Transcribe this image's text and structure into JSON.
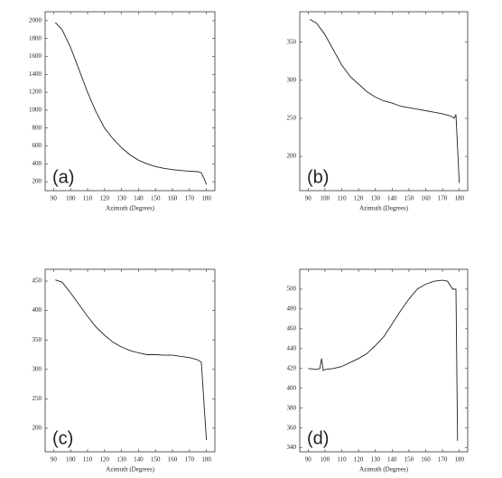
{
  "chart_data": [
    {
      "type": "line",
      "annotation": "(a)",
      "x_label": "Azimuth (Degrees)",
      "x": [
        91,
        95,
        100,
        105,
        110,
        115,
        120,
        125,
        130,
        135,
        140,
        145,
        150,
        155,
        160,
        165,
        170,
        175,
        177,
        179,
        180
      ],
      "series": [
        {
          "color": "#222222",
          "values": [
            1980,
            1900,
            1700,
            1450,
            1200,
            980,
            800,
            680,
            580,
            500,
            440,
            400,
            370,
            350,
            335,
            325,
            318,
            312,
            300,
            220,
            170
          ]
        }
      ],
      "xlim": [
        85,
        185
      ],
      "xticks": [
        90,
        100,
        110,
        120,
        130,
        140,
        150,
        160,
        170,
        180
      ],
      "ylim": [
        100,
        2100
      ],
      "yticks": [
        200,
        400,
        600,
        800,
        1000,
        1200,
        1400,
        1600,
        1800,
        2000
      ],
      "grid": false
    },
    {
      "type": "line",
      "annotation": "(b)",
      "x_label": "Azimuth (Degrees)",
      "x": [
        91,
        95,
        100,
        105,
        110,
        115,
        120,
        125,
        130,
        135,
        140,
        145,
        150,
        155,
        160,
        165,
        170,
        175,
        177,
        178,
        180
      ],
      "series": [
        {
          "color": "#222222",
          "values": [
            380,
            375,
            360,
            340,
            320,
            305,
            295,
            285,
            278,
            273,
            270,
            266,
            264,
            262,
            260,
            258,
            256,
            253,
            250,
            255,
            165
          ]
        }
      ],
      "xlim": [
        85,
        185
      ],
      "xticks": [
        90,
        100,
        110,
        120,
        130,
        140,
        150,
        160,
        170,
        180
      ],
      "ylim": [
        155,
        390
      ],
      "yticks": [
        200,
        250,
        300,
        350
      ],
      "grid": false
    },
    {
      "type": "line",
      "annotation": "(c)",
      "x_label": "Azimuth (Degrees)",
      "x": [
        91,
        95,
        100,
        105,
        110,
        115,
        120,
        125,
        130,
        135,
        140,
        145,
        150,
        155,
        160,
        165,
        170,
        175,
        177,
        180
      ],
      "series": [
        {
          "color": "#222222",
          "values": [
            452,
            448,
            430,
            410,
            390,
            372,
            358,
            346,
            338,
            332,
            328,
            325,
            325,
            324,
            324,
            322,
            320,
            316,
            312,
            180
          ]
        }
      ],
      "xlim": [
        85,
        185
      ],
      "xticks": [
        90,
        100,
        110,
        120,
        130,
        140,
        150,
        160,
        170,
        180
      ],
      "ylim": [
        160,
        470
      ],
      "yticks": [
        200,
        250,
        300,
        350,
        400,
        450
      ],
      "grid": false
    },
    {
      "type": "line",
      "annotation": "(d)",
      "x_label": "Azimuth (Degrees)",
      "x": [
        90,
        95,
        97,
        98,
        99,
        100,
        105,
        110,
        115,
        120,
        125,
        130,
        135,
        140,
        145,
        150,
        155,
        160,
        165,
        170,
        173,
        176,
        178,
        179
      ],
      "series": [
        {
          "color": "#222222",
          "values": [
            420,
            419,
            420,
            430,
            418,
            419,
            420,
            422,
            426,
            430,
            435,
            443,
            452,
            465,
            478,
            490,
            500,
            505,
            508,
            509,
            508,
            500,
            500,
            347
          ]
        }
      ],
      "xlim": [
        85,
        185
      ],
      "xticks": [
        90,
        100,
        110,
        120,
        130,
        140,
        150,
        160,
        170,
        180
      ],
      "ylim": [
        336,
        520
      ],
      "yticks": [
        340,
        360,
        380,
        400,
        420,
        440,
        460,
        480,
        500
      ],
      "grid": false
    }
  ]
}
